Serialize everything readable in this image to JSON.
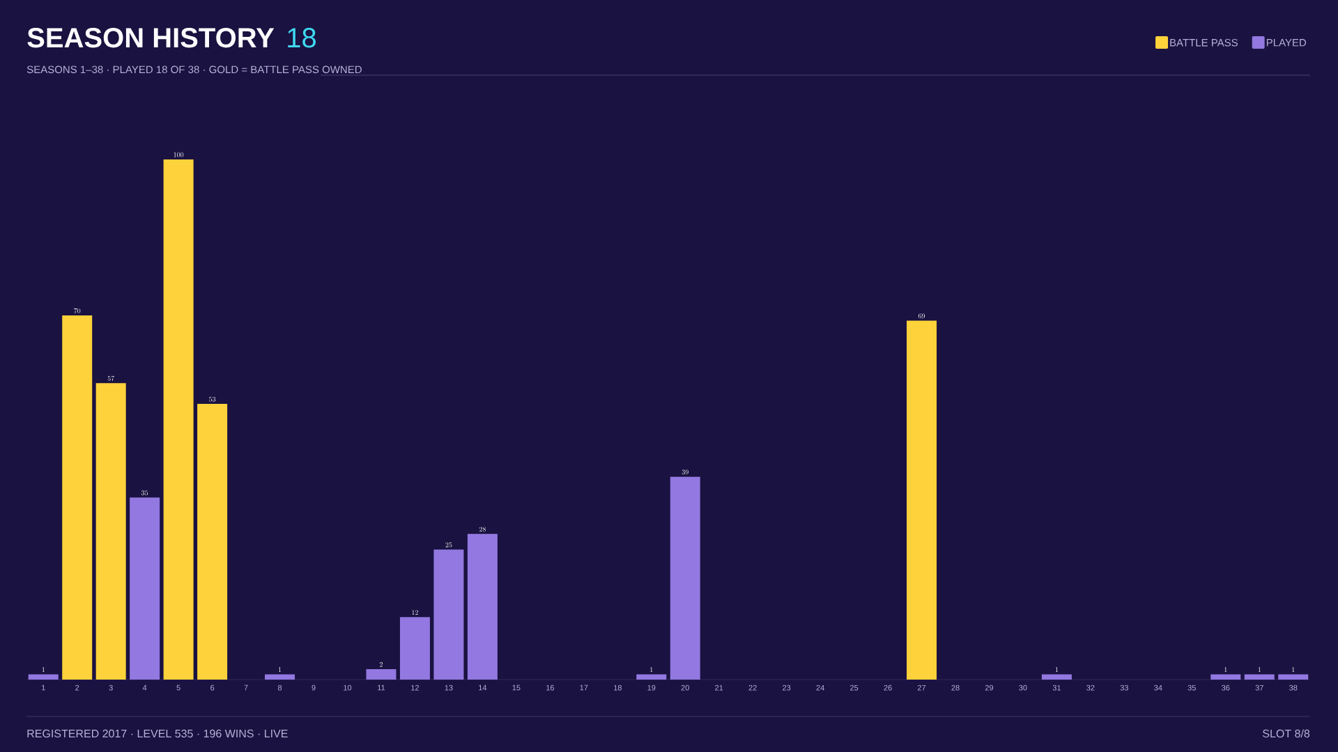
{
  "chart_data": {
    "type": "bar",
    "title": "SEASON HISTORY",
    "subtitle": "SEASONS 1–38 · PLAYED 18 OF 38 · GOLD = BATTLE PASS OWNED",
    "categories": [
      "1",
      "2",
      "3",
      "4",
      "5",
      "6",
      "7",
      "8",
      "9",
      "10",
      "11",
      "12",
      "13",
      "14",
      "15",
      "16",
      "17",
      "18",
      "19",
      "20",
      "21",
      "22",
      "23",
      "24",
      "25",
      "26",
      "27",
      "28",
      "29",
      "30",
      "31",
      "32",
      "33",
      "34",
      "35",
      "36",
      "37",
      "38"
    ],
    "series": [
      {
        "name": "BATTLE PASS",
        "color": "#fdd23a",
        "values": [
          null,
          70,
          57,
          null,
          100,
          53,
          null,
          null,
          null,
          null,
          null,
          null,
          null,
          null,
          null,
          null,
          null,
          null,
          null,
          null,
          null,
          null,
          null,
          null,
          null,
          null,
          69,
          null,
          null,
          null,
          null,
          null,
          null,
          null,
          null,
          null,
          null,
          null
        ]
      },
      {
        "name": "PLAYED",
        "color": "#9278e0",
        "values": [
          1,
          null,
          null,
          35,
          null,
          null,
          null,
          1,
          null,
          null,
          2,
          12,
          25,
          28,
          null,
          null,
          null,
          null,
          1,
          39,
          null,
          null,
          null,
          null,
          null,
          null,
          null,
          null,
          null,
          null,
          1,
          null,
          null,
          null,
          null,
          1,
          1,
          1
        ]
      }
    ],
    "ylim": [
      0,
      100
    ],
    "data_labels": true,
    "legend": "top right",
    "annotations": [
      "18",
      "REGISTERED 2017 · LEVEL 535 · 196 WINS · LIVE",
      "SLOT 8/8"
    ]
  }
}
